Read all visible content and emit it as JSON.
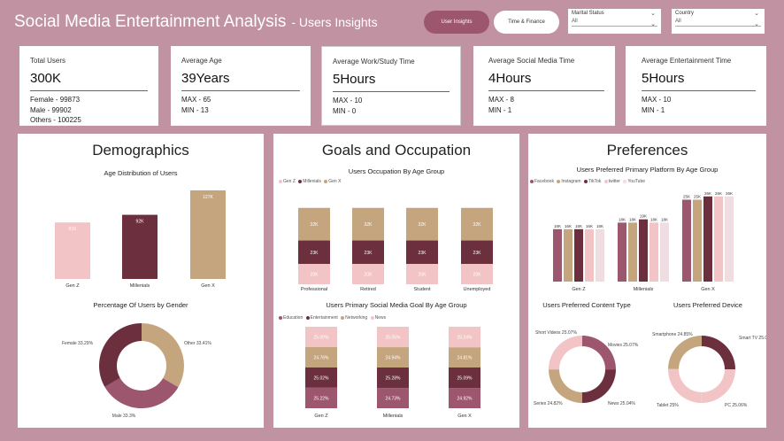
{
  "header": {
    "title": "Social Media Entertainment Analysis",
    "subtitle": "- Users Insights",
    "btn_users": "User Insights",
    "btn_time": "Time & Finance"
  },
  "slicers": {
    "marital": {
      "label": "Marital Status",
      "value": "All"
    },
    "country": {
      "label": "Country",
      "value": "All"
    }
  },
  "kpis": {
    "total": {
      "label": "Total Users",
      "value": "300K",
      "female": "Female - 99873",
      "male": "Male - 99902",
      "others": "Others - 100225"
    },
    "age": {
      "label": "Average Age",
      "value": "39Years",
      "max": "MAX - 65",
      "min": "MIN - 13"
    },
    "work": {
      "label": "Average Work/Study Time",
      "value": "5Hours",
      "max": "MAX - 10",
      "min": "MIN - 0"
    },
    "social": {
      "label": "Average Social Media Time",
      "value": "4Hours",
      "max": "MAX - 8",
      "min": "MIN - 1"
    },
    "ent": {
      "label": "Average Entertainment Time",
      "value": "5Hours",
      "max": "MAX - 10",
      "min": "MIN - 1"
    }
  },
  "panels": {
    "demo": "Demographics",
    "goals": "Goals and Occupation",
    "pref": "Preferences"
  },
  "colors": {
    "genz": "#f2c4c6",
    "mill": "#6b2f3e",
    "genx": "#c5a57e",
    "ent": "#9c566e",
    "light": "#f0dde1"
  },
  "chart_data": [
    {
      "type": "bar",
      "title": "Age Distribution of Users",
      "categories": [
        "Gen Z",
        "Millenials",
        "Gen X"
      ],
      "values": [
        81,
        92,
        127
      ],
      "labels": [
        "81K",
        "92K",
        "127K"
      ]
    },
    {
      "type": "pie",
      "title": "Percentage Of Users by Gender",
      "slices": [
        {
          "name": "Female",
          "value": 33.29,
          "label": "Female 33.29%"
        },
        {
          "name": "Other",
          "value": 33.41,
          "label": "Other 33.41%"
        },
        {
          "name": "Male",
          "value": 33.3,
          "label": "Male 33.3%"
        }
      ]
    },
    {
      "type": "bar",
      "title": "Users Occupation By Age Group",
      "categories": [
        "Professional",
        "Retired",
        "Student",
        "Unemployed"
      ],
      "series": [
        {
          "name": "Gen Z",
          "values": [
            20,
            20,
            20,
            20
          ]
        },
        {
          "name": "Millenials",
          "values": [
            23,
            23,
            23,
            23
          ]
        },
        {
          "name": "Gen X",
          "values": [
            32,
            32,
            32,
            32
          ]
        }
      ],
      "labels": {
        "Gen Z": "20K",
        "Millenials": "23K",
        "Gen X": "32K"
      }
    },
    {
      "type": "bar",
      "title": "Users Primary Social Media Goal By Age Group",
      "categories": [
        "Gen Z",
        "Millenials",
        "Gen X"
      ],
      "series": [
        {
          "name": "Education",
          "values": [
            25.22,
            24.73,
            24.92
          ],
          "labels": [
            "25.22%",
            "24.73%",
            "24.92%"
          ]
        },
        {
          "name": "Entertainment",
          "values": [
            25.02,
            25.28,
            25.09
          ],
          "labels": [
            "25.02%",
            "25.28%",
            "25.09%"
          ]
        },
        {
          "name": "Networking",
          "values": [
            24.76,
            24.94,
            24.81
          ],
          "labels": [
            "24.76%",
            "24.94%",
            "24.81%"
          ]
        },
        {
          "name": "News",
          "values": [
            25.0,
            25.05,
            25.24
          ],
          "labels": [
            "25.00%",
            "25.05%",
            "25.24%"
          ]
        }
      ]
    },
    {
      "type": "bar",
      "title": "Users Preferred Primary Platform By Age Group",
      "categories": [
        "Gen Z",
        "Millenials",
        "Gen X"
      ],
      "series": [
        {
          "name": "Facebook",
          "values": [
            16,
            18,
            25
          ]
        },
        {
          "name": "Instagram",
          "values": [
            16,
            18,
            25
          ]
        },
        {
          "name": "TikTok",
          "values": [
            16,
            19,
            26
          ]
        },
        {
          "name": "twitter",
          "values": [
            16,
            18,
            26
          ]
        },
        {
          "name": "YouTube",
          "values": [
            16,
            18,
            26
          ]
        }
      ],
      "labels": [
        [
          "16K",
          "16K",
          "16K",
          "16K",
          "16K"
        ],
        [
          "18K",
          "18K",
          "19K",
          "18K",
          "18K"
        ],
        [
          "25K",
          "25K",
          "26K",
          "26K",
          "26K"
        ]
      ]
    },
    {
      "type": "pie",
      "title": "Users Preferred Content Type",
      "slices": [
        {
          "name": "Movies",
          "value": 25.07,
          "label": "Movies 25.07%"
        },
        {
          "name": "News",
          "value": 25.04,
          "label": "News 25.04%"
        },
        {
          "name": "Series",
          "value": 24.82,
          "label": "Series 24.82%"
        },
        {
          "name": "Short Videos",
          "value": 25.07,
          "label": "Short Videos 25.07%"
        }
      ]
    },
    {
      "type": "pie",
      "title": "Users Preferred Device",
      "slices": [
        {
          "name": "Smart TV",
          "value": 25.08,
          "label": "Smart TV 25.08%"
        },
        {
          "name": "PC",
          "value": 25.06,
          "label": "PC 25.06%"
        },
        {
          "name": "Tablet",
          "value": 25,
          "label": "Tablet 25%"
        },
        {
          "name": "Smartphone",
          "value": 24.85,
          "label": "Smartphone 24.85%"
        }
      ]
    }
  ]
}
